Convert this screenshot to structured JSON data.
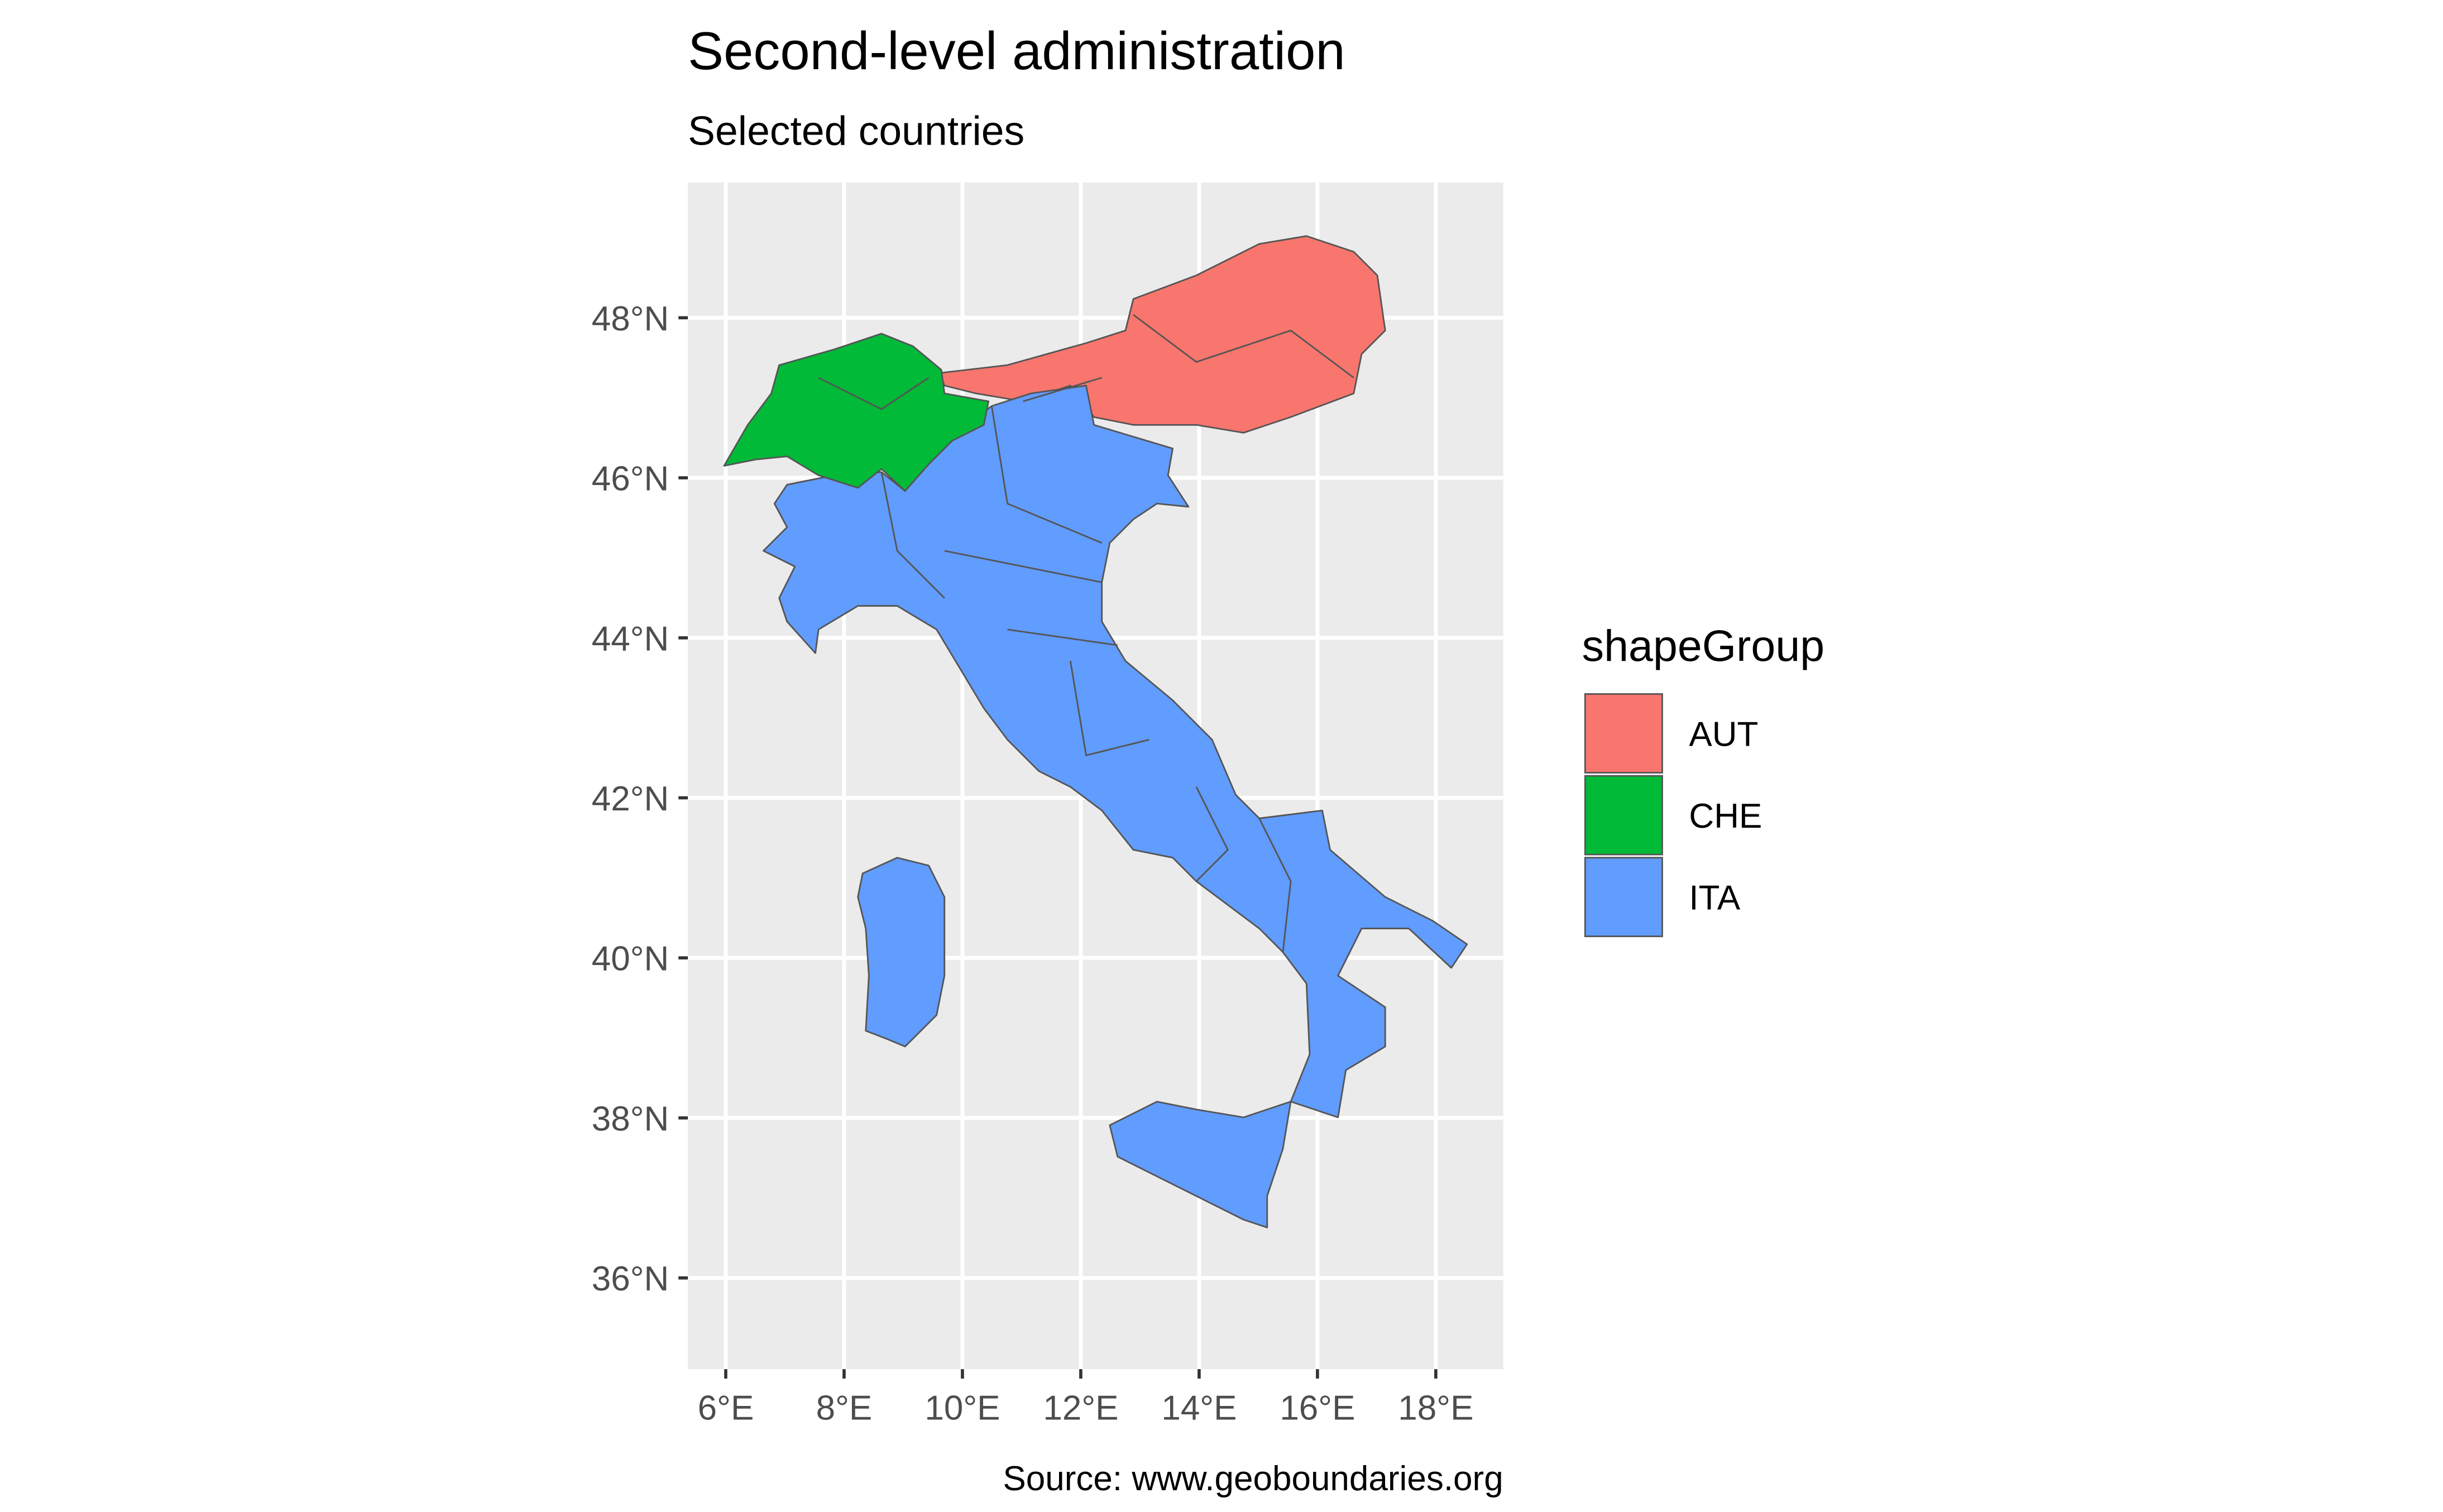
{
  "chart_data": {
    "type": "map",
    "title": "Second-level administration",
    "subtitle": "Selected countries",
    "caption": "Source: www.geoboundaries.org",
    "xlim": [
      5.36,
      19.14
    ],
    "ylim": [
      34.86,
      49.69
    ],
    "xticks": [
      {
        "value": 6,
        "label": "6°E"
      },
      {
        "value": 8,
        "label": "8°E"
      },
      {
        "value": 10,
        "label": "10°E"
      },
      {
        "value": 12,
        "label": "12°E"
      },
      {
        "value": 14,
        "label": "14°E"
      },
      {
        "value": 16,
        "label": "16°E"
      },
      {
        "value": 18,
        "label": "18°E"
      }
    ],
    "yticks": [
      {
        "value": 36,
        "label": "36°N"
      },
      {
        "value": 38,
        "label": "38°N"
      },
      {
        "value": 40,
        "label": "40°N"
      },
      {
        "value": 42,
        "label": "42°N"
      },
      {
        "value": 44,
        "label": "44°N"
      },
      {
        "value": 46,
        "label": "46°N"
      },
      {
        "value": 48,
        "label": "48°N"
      }
    ],
    "grid": true,
    "legend": {
      "title": "shapeGroup",
      "position": "right"
    },
    "series": [
      {
        "name": "AUT",
        "color": "#F8766D"
      },
      {
        "name": "CHE",
        "color": "#00BA38"
      },
      {
        "name": "ITA",
        "color": "#619CFF"
      }
    ]
  }
}
